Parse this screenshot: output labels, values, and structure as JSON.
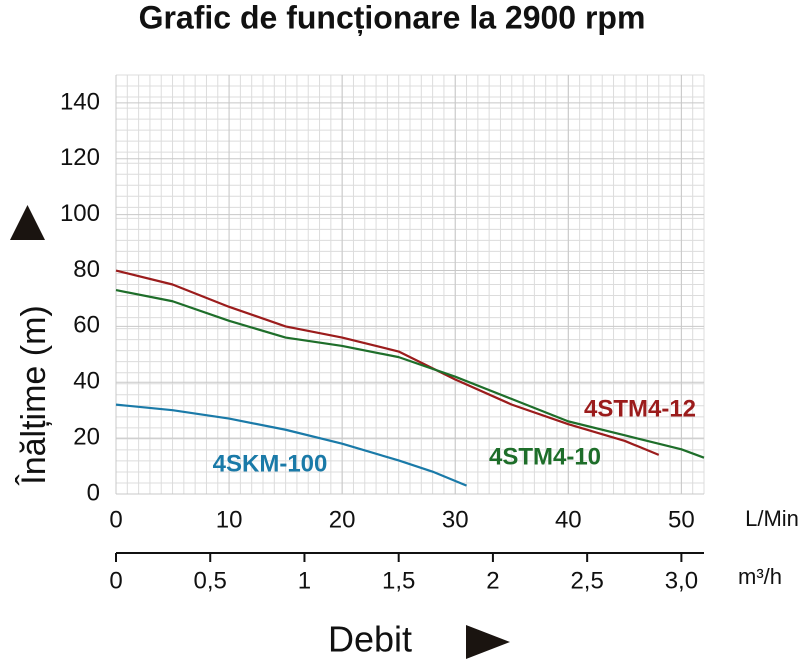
{
  "chart_data": {
    "type": "line",
    "title": "Grafic de funcționare la 2900 rpm",
    "y_label": "Înălțime (m)",
    "x_label": "Debit",
    "x_unit": "L/Min",
    "x2_unit": "m³/h",
    "xlim": [
      0,
      52
    ],
    "xticks": [
      0,
      10,
      20,
      30,
      40,
      50
    ],
    "x2lim": [
      0,
      3.12
    ],
    "x2ticks": [
      0,
      {
        "value": 0.5,
        "label": "0,5"
      },
      1,
      {
        "value": 1.5,
        "label": "1,5"
      },
      2,
      {
        "value": 2.5,
        "label": "2,5"
      },
      {
        "value": 3.0,
        "label": "3,0"
      }
    ],
    "ylim": [
      0,
      150
    ],
    "yticks": [
      0,
      20,
      40,
      60,
      80,
      100,
      120,
      140
    ],
    "grid": true,
    "series": [
      {
        "name": "4STM4-12",
        "color": "#9b1c1c",
        "x": [
          0,
          5,
          10,
          15,
          20,
          25,
          30,
          35,
          40,
          45,
          48
        ],
        "values": [
          80,
          75,
          67,
          60,
          56,
          51,
          41,
          32,
          25,
          19,
          14
        ]
      },
      {
        "name": "4STM4-10",
        "color": "#1e6e2a",
        "x": [
          0,
          5,
          10,
          15,
          20,
          25,
          30,
          35,
          40,
          45,
          50,
          52
        ],
        "values": [
          73,
          69,
          62,
          56,
          53,
          49,
          42,
          34,
          26,
          21,
          16,
          13
        ]
      },
      {
        "name": "4SKM-100",
        "color": "#1a7aa8",
        "x": [
          0,
          5,
          10,
          15,
          20,
          25,
          28,
          31
        ],
        "values": [
          32,
          30,
          27,
          23,
          18,
          12,
          8,
          3
        ]
      }
    ]
  }
}
